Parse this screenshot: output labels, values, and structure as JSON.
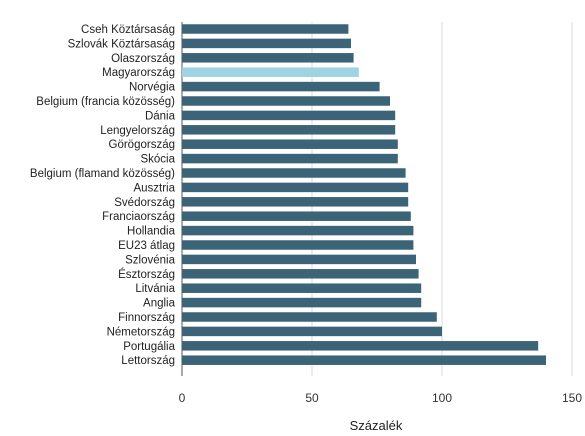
{
  "chart_data": {
    "type": "bar",
    "orientation": "horizontal",
    "categories": [
      "Cseh Köztársaság",
      "Szlovák Köztársaság",
      "Olaszország",
      "Magyarország",
      "Norvégia",
      "Belgium (francia közösség)",
      "Dánia",
      "Lengyelország",
      "Görögország",
      "Skócia",
      "Belgium (flamand közösség)",
      "Ausztria",
      "Svédország",
      "Franciaország",
      "Hollandia",
      "EU23 átlag",
      "Szlovénia",
      "Észtország",
      "Litvánia",
      "Anglia",
      "Finnország",
      "Németország",
      "Portugália",
      "Lettország"
    ],
    "values": [
      64,
      65,
      66,
      68,
      76,
      80,
      82,
      82,
      83,
      83,
      86,
      87,
      87,
      88,
      89,
      89,
      90,
      91,
      92,
      92,
      98,
      100,
      137,
      140
    ],
    "highlight": "Magyarország",
    "xlabel": "Százalék",
    "ylabel": "",
    "title": "",
    "xlim": [
      0,
      150
    ],
    "xticks": [
      0,
      50,
      100,
      150
    ],
    "grid": "vertical",
    "colors": {
      "bar": "#3c6478",
      "highlight": "#9fd3e3"
    }
  }
}
